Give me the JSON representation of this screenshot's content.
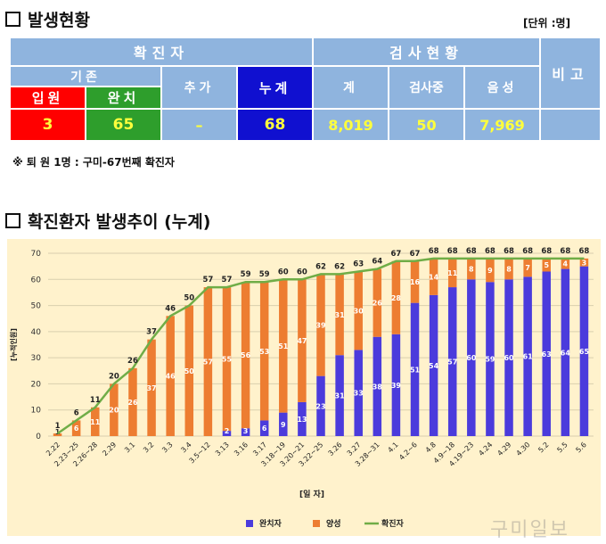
{
  "section1": {
    "title": "발생현황",
    "unit": "[단위 :명]"
  },
  "table": {
    "confirmed_label": "확진자",
    "inspection_label": "검사현황",
    "remarks_label": "비고",
    "existing_label": "기존",
    "hospitalized_label": "입원",
    "recovered_label": "완치",
    "added_label": "추가",
    "cumulative_label": "누계",
    "total_label": "계",
    "testing_label": "검사중",
    "negative_label": "음성",
    "hospitalized_value": "3",
    "recovered_value": "65",
    "added_value": "–",
    "cumulative_value": "68",
    "total_value": "8,019",
    "testing_value": "50",
    "negative_value": "7,969",
    "remarks_value": ""
  },
  "note": "※ 퇴 원 1명 : 구미-67번째 확진자",
  "section2": {
    "title": "확진환자 발생추이 (누계)"
  },
  "chart_data": {
    "type": "bar",
    "stacked": true,
    "categories": [
      "2.22",
      "2.23~25",
      "2.26~28",
      "2.29",
      "3.1",
      "3.2",
      "3.3",
      "3.4",
      "3.5~12",
      "3.13",
      "3.16",
      "3.17",
      "3.18~19",
      "3.20~21",
      "3.22~25",
      "3.26",
      "3.27",
      "3.28~31",
      "4.1",
      "4.2~6",
      "4.8",
      "4.9~18",
      "4.19~23",
      "4.24",
      "4.29",
      "4.30",
      "5.2",
      "5.5",
      "5.6"
    ],
    "series": [
      {
        "name": "완치자",
        "type": "bar",
        "color": "#4b3bdc",
        "values": [
          0,
          0,
          0,
          0,
          0,
          0,
          0,
          0,
          0,
          2,
          3,
          6,
          9,
          13,
          23,
          31,
          33,
          38,
          39,
          51,
          54,
          57,
          60,
          59,
          60,
          61,
          63,
          64,
          65
        ]
      },
      {
        "name": "양성",
        "type": "bar",
        "color": "#ed7d31",
        "values": [
          1,
          6,
          11,
          20,
          26,
          37,
          46,
          50,
          57,
          55,
          56,
          53,
          51,
          47,
          39,
          31,
          30,
          26,
          28,
          16,
          14,
          11,
          8,
          9,
          8,
          7,
          5,
          4,
          3
        ]
      },
      {
        "name": "확진자",
        "type": "line",
        "color": "#70ad47",
        "values": [
          1,
          6,
          11,
          20,
          26,
          37,
          46,
          50,
          57,
          57,
          59,
          59,
          60,
          60,
          62,
          62,
          63,
          64,
          67,
          67,
          68,
          68,
          68,
          68,
          68,
          68,
          68,
          68,
          68
        ]
      }
    ],
    "xlabel": "[일 자]",
    "ylabel": "[누적인원]",
    "ylim": [
      0,
      70
    ],
    "yticks": [
      0,
      10,
      20,
      30,
      40,
      50,
      60,
      70
    ],
    "grid": true,
    "legend": "bottom-center"
  },
  "watermark": "구미일보"
}
